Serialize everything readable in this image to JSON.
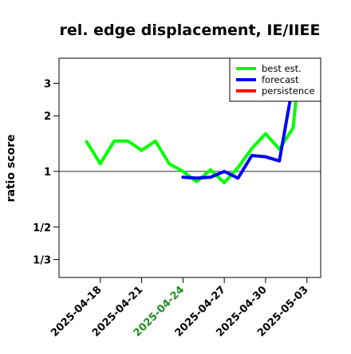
{
  "chart_data": {
    "type": "line",
    "title": "rel. edge displacement, IE/IIEE",
    "xlabel": "",
    "ylabel": "ratio score",
    "y_scale": "log",
    "ylim": [
      0.2667,
      4.1
    ],
    "y_ticks": [
      {
        "value": 0.3333,
        "label": "1/3"
      },
      {
        "value": 0.5,
        "label": "1/2"
      },
      {
        "value": 1,
        "label": "1"
      },
      {
        "value": 2,
        "label": "2"
      },
      {
        "value": 3,
        "label": "3"
      }
    ],
    "xlim": [
      "2025-04-15",
      "2025-05-04"
    ],
    "x_ticks": [
      {
        "value": "2025-04-18",
        "label": "2025-04-18",
        "color": "#000000"
      },
      {
        "value": "2025-04-21",
        "label": "2025-04-21",
        "color": "#000000"
      },
      {
        "value": "2025-04-24",
        "label": "2025-04-24",
        "color": "#228b22"
      },
      {
        "value": "2025-04-27",
        "label": "2025-04-27",
        "color": "#000000"
      },
      {
        "value": "2025-04-30",
        "label": "2025-04-30",
        "color": "#000000"
      },
      {
        "value": "2025-05-03",
        "label": "2025-05-03",
        "color": "#000000"
      }
    ],
    "reference_line": 1,
    "legend_position": "top-right",
    "series": [
      {
        "name": "best est.",
        "color": "#00ff00",
        "points": [
          {
            "x": "2025-04-17",
            "y": 1.45
          },
          {
            "x": "2025-04-18",
            "y": 1.1
          },
          {
            "x": "2025-04-19",
            "y": 1.46
          },
          {
            "x": "2025-04-20",
            "y": 1.46
          },
          {
            "x": "2025-04-21",
            "y": 1.3
          },
          {
            "x": "2025-04-22",
            "y": 1.46
          },
          {
            "x": "2025-04-23",
            "y": 1.1
          },
          {
            "x": "2025-04-24",
            "y": 1.0
          },
          {
            "x": "2025-04-25",
            "y": 0.88
          },
          {
            "x": "2025-04-26",
            "y": 1.02
          },
          {
            "x": "2025-04-27",
            "y": 0.87
          },
          {
            "x": "2025-04-28",
            "y": 1.05
          },
          {
            "x": "2025-04-29",
            "y": 1.33
          },
          {
            "x": "2025-04-30",
            "y": 1.6
          },
          {
            "x": "2025-05-01",
            "y": 1.32
          },
          {
            "x": "2025-05-02",
            "y": 1.72
          },
          {
            "x": "2025-05-02.5",
            "y": 4.1
          }
        ]
      },
      {
        "name": "forecast",
        "color": "#0000ff",
        "points": [
          {
            "x": "2025-04-24",
            "y": 0.93
          },
          {
            "x": "2025-04-25",
            "y": 0.92
          },
          {
            "x": "2025-04-26",
            "y": 0.93
          },
          {
            "x": "2025-04-27",
            "y": 1.0
          },
          {
            "x": "2025-04-28",
            "y": 0.92
          },
          {
            "x": "2025-04-29",
            "y": 1.22
          },
          {
            "x": "2025-04-30",
            "y": 1.2
          },
          {
            "x": "2025-05-01",
            "y": 1.14
          },
          {
            "x": "2025-05-02",
            "y": 3.0
          },
          {
            "x": "2025-05-02.3",
            "y": 4.1
          }
        ]
      },
      {
        "name": "persistence",
        "color": "#ff0000",
        "points": []
      }
    ]
  }
}
